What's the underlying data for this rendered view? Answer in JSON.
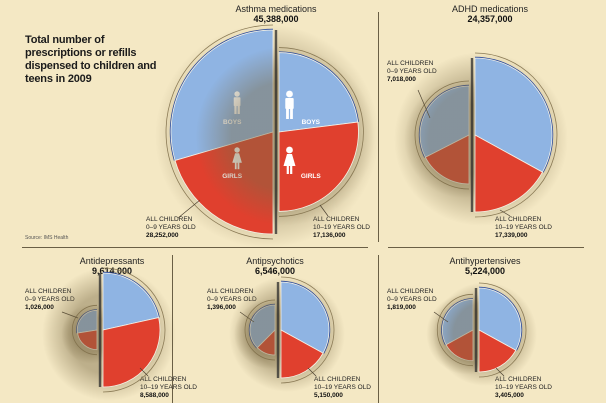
{
  "headline": "Total number of prescriptions or refills dispensed to children and teens in 2009",
  "source": "Source: IMS Health",
  "colors": {
    "background": "#f4e8c4",
    "boys": "#8fb4e3",
    "girls": "#e0402e",
    "rim": "#2a4a9a",
    "ring": "#8a7a55"
  },
  "chart_data": [
    {
      "type": "pie",
      "title": "Asthma medications",
      "total": "45,388,000",
      "total_value": 45388000,
      "groups": [
        {
          "label": "ALL CHILDREN",
          "sublabel": "0–9 YEARS OLD",
          "value_label": "28,252,000",
          "value": 28252000,
          "boys_share": 0.59,
          "segments": [
            "BOYS",
            "GIRLS"
          ]
        },
        {
          "label": "ALL CHILDREN",
          "sublabel": "10–19 YEARS OLD",
          "value_label": "17,136,000",
          "value": 17136000,
          "boys_share": 0.46,
          "segments": [
            "BOYS",
            "GIRLS"
          ]
        }
      ]
    },
    {
      "type": "pie",
      "title": "ADHD medications",
      "total": "24,357,000",
      "total_value": 24357000,
      "groups": [
        {
          "label": "ALL CHILDREN",
          "sublabel": "0–9 YEARS OLD",
          "value_label": "7,018,000",
          "value": 7018000,
          "boys_share": 0.65
        },
        {
          "label": "ALL CHILDREN",
          "sublabel": "10–19 YEARS OLD",
          "value_label": "17,339,000",
          "value": 17339000,
          "boys_share": 0.66
        }
      ]
    },
    {
      "type": "pie",
      "title": "Antidepressants",
      "total": "9,614,000",
      "total_value": 9614000,
      "groups": [
        {
          "label": "ALL CHILDREN",
          "sublabel": "0–9 YEARS OLD",
          "value_label": "1,026,000",
          "value": 1026000,
          "boys_share": 0.55
        },
        {
          "label": "ALL CHILDREN",
          "sublabel": "10–19 YEARS OLD",
          "value_label": "8,588,000",
          "value": 8588000,
          "boys_share": 0.43
        }
      ]
    },
    {
      "type": "pie",
      "title": "Antipsychotics",
      "total": "6,546,000",
      "total_value": 6546000,
      "groups": [
        {
          "label": "ALL CHILDREN",
          "sublabel": "0–9 YEARS OLD",
          "value_label": "1,396,000",
          "value": 1396000,
          "boys_share": 0.75
        },
        {
          "label": "ALL CHILDREN",
          "sublabel": "10–19 YEARS OLD",
          "value_label": "5,150,000",
          "value": 5150000,
          "boys_share": 0.66
        }
      ]
    },
    {
      "type": "pie",
      "title": "Antihypertensives",
      "total": "5,224,000",
      "total_value": 5224000,
      "groups": [
        {
          "label": "ALL CHILDREN",
          "sublabel": "0–9 YEARS OLD",
          "value_label": "1,819,000",
          "value": 1819000,
          "boys_share": 0.66
        },
        {
          "label": "ALL CHILDREN",
          "sublabel": "10–19 YEARS OLD",
          "value_label": "3,405,000",
          "value": 3405000,
          "boys_share": 0.66
        }
      ]
    }
  ]
}
